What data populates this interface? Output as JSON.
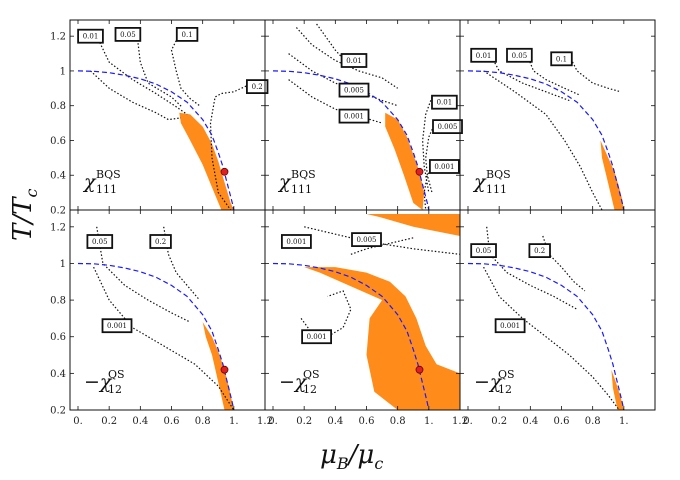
{
  "chart_data": {
    "type": "line",
    "xlabel": "μB/μc",
    "ylabel": "T/Tc",
    "xlim": [
      0,
      1.2
    ],
    "ylim": [
      0.2,
      1.27
    ],
    "x_ticks": [
      "0.",
      "0.2",
      "0.4",
      "0.6",
      "0.8",
      "1.",
      "1.2"
    ],
    "x_ticks_last": [
      "0.",
      "0.2",
      "0.4",
      "0.6",
      "0.8",
      "1."
    ],
    "y_ticks": [
      "0.2",
      "0.4",
      "0.6",
      "0.8",
      "1",
      "1.2"
    ],
    "crossover_line": {
      "description": "phase boundary (dashed)",
      "color": "#1a1aff",
      "x": [
        0.0,
        0.1,
        0.2,
        0.3,
        0.4,
        0.5,
        0.6,
        0.7,
        0.8,
        0.86,
        0.9,
        0.93,
        0.95,
        0.97,
        0.99,
        1.0
      ],
      "y": [
        1.0,
        0.998,
        0.99,
        0.975,
        0.955,
        0.925,
        0.88,
        0.82,
        0.72,
        0.63,
        0.53,
        0.45,
        0.38,
        0.31,
        0.24,
        0.2
      ]
    },
    "critical_point": {
      "x": 0.94,
      "y": 0.42,
      "color": "#e02020"
    },
    "fill_color": "#ff8c1a",
    "panels": [
      {
        "id": "p1",
        "observable": {
          "prefix": "",
          "sup": "BQS",
          "sub": "111"
        },
        "contours": [
          {
            "label": "0.01",
            "label_pos": [
              0.08,
              1.2
            ],
            "x": [
              0.12,
              0.2,
              0.35,
              0.5,
              0.62,
              0.7
            ],
            "y": [
              1.2,
              1.05,
              0.95,
              0.87,
              0.8,
              0.75
            ]
          },
          {
            "label": "0.05",
            "label_pos": [
              0.32,
              1.21
            ],
            "x": [
              0.38,
              0.4,
              0.45,
              0.6,
              0.67
            ],
            "y": [
              1.2,
              1.05,
              0.93,
              0.85,
              0.79
            ]
          },
          {
            "label": "0.1",
            "label_pos": [
              0.7,
              1.21
            ],
            "x": [
              0.65,
              0.6,
              0.63,
              0.66,
              0.72,
              0.78
            ],
            "y": [
              1.21,
              1.12,
              1.0,
              0.9,
              0.84,
              0.8
            ]
          },
          {
            "label": "0.2",
            "label_pos": [
              1.15,
              0.91
            ],
            "x": [
              1.12,
              1.0,
              0.92,
              0.88,
              0.85,
              0.86,
              0.9,
              0.98
            ],
            "y": [
              0.93,
              0.88,
              0.87,
              0.85,
              0.7,
              0.5,
              0.3,
              0.2
            ]
          },
          {
            "label": "",
            "label_pos": [
              0,
              0
            ],
            "x": [
              0.08,
              0.2,
              0.35,
              0.5,
              0.58,
              0.66
            ],
            "y": [
              1.0,
              0.9,
              0.82,
              0.76,
              0.72,
              0.73
            ]
          }
        ],
        "fill": {
          "x": [
            0.65,
            0.72,
            0.8,
            0.86,
            0.9,
            0.94,
            0.98,
            1.0,
            0.92,
            0.86,
            0.8,
            0.72,
            0.66
          ],
          "y": [
            0.76,
            0.75,
            0.68,
            0.58,
            0.48,
            0.36,
            0.24,
            0.2,
            0.2,
            0.33,
            0.46,
            0.6,
            0.7
          ]
        },
        "show_critical_point": true
      },
      {
        "id": "p2",
        "observable": {
          "prefix": "",
          "sup": "BQS",
          "sub": "111"
        },
        "contours": [
          {
            "label": "0.01",
            "label_pos": [
              0.52,
              1.06
            ],
            "x": [
              0.15,
              0.25,
              0.4,
              0.55,
              0.7,
              0.8
            ],
            "y": [
              1.25,
              1.15,
              1.06,
              1.0,
              0.96,
              0.9
            ]
          },
          {
            "label": "0.005",
            "label_pos": [
              0.52,
              0.89
            ],
            "x": [
              0.1,
              0.25,
              0.4,
              0.55,
              0.7,
              0.8
            ],
            "y": [
              1.1,
              1.0,
              0.93,
              0.88,
              0.83,
              0.8
            ]
          },
          {
            "label": "0.001",
            "label_pos": [
              0.52,
              0.74
            ],
            "x": [
              0.1,
              0.25,
              0.4,
              0.55,
              0.7
            ],
            "y": [
              0.95,
              0.85,
              0.78,
              0.74,
              0.7
            ]
          },
          {
            "label": "0.01",
            "label_pos": [
              1.1,
              0.82
            ],
            "x": [
              1.02,
              0.98,
              0.96,
              0.97,
              1.0
            ],
            "y": [
              0.85,
              0.75,
              0.6,
              0.45,
              0.3
            ]
          },
          {
            "label": "0.005",
            "label_pos": [
              1.12,
              0.68
            ],
            "x": [
              1.05,
              1.0,
              0.98,
              0.99,
              1.02
            ],
            "y": [
              0.72,
              0.62,
              0.5,
              0.4,
              0.3
            ]
          },
          {
            "label": "0.001",
            "label_pos": [
              1.1,
              0.45
            ],
            "x": [
              1.02,
              0.99,
              0.97,
              0.98
            ],
            "y": [
              0.45,
              0.4,
              0.3,
              0.2
            ]
          },
          {
            "label": "",
            "label_pos": [
              0,
              0
            ],
            "x": [
              0.28,
              0.32,
              0.36,
              0.4,
              0.44
            ],
            "y": [
              1.27,
              1.22,
              1.17,
              1.12,
              1.08
            ]
          }
        ],
        "fill": {
          "x": [
            0.72,
            0.8,
            0.86,
            0.9,
            0.94,
            0.97,
            0.96,
            0.9,
            0.84,
            0.78,
            0.72
          ],
          "y": [
            0.76,
            0.72,
            0.62,
            0.52,
            0.42,
            0.3,
            0.2,
            0.24,
            0.4,
            0.55,
            0.68
          ]
        },
        "show_critical_point": true
      },
      {
        "id": "p3",
        "observable": {
          "prefix": "",
          "sup": "BQS",
          "sub": "111"
        },
        "contours": [
          {
            "label": "0.01",
            "label_pos": [
              0.1,
              1.09
            ],
            "x": [
              0.14,
              0.2,
              0.35,
              0.5,
              0.65
            ],
            "y": [
              1.1,
              1.0,
              0.93,
              0.88,
              0.83
            ]
          },
          {
            "label": "0.05",
            "label_pos": [
              0.33,
              1.09
            ],
            "x": [
              0.38,
              0.42,
              0.5,
              0.62,
              0.72
            ],
            "y": [
              1.09,
              1.0,
              0.95,
              0.9,
              0.86
            ]
          },
          {
            "label": "0.1",
            "label_pos": [
              0.6,
              1.07
            ],
            "x": [
              0.66,
              0.7,
              0.8,
              0.9,
              0.98
            ],
            "y": [
              1.07,
              1.0,
              0.93,
              0.9,
              0.88
            ]
          },
          {
            "label": "",
            "label_pos": [
              0,
              0
            ],
            "x": [
              0.1,
              0.3,
              0.5,
              0.62,
              0.72,
              0.8,
              0.86
            ],
            "y": [
              1.0,
              0.88,
              0.75,
              0.6,
              0.45,
              0.3,
              0.2
            ]
          }
        ],
        "fill": {
          "x": [
            0.85,
            0.9,
            0.94,
            0.97,
            0.99,
            1.0,
            0.94,
            0.9,
            0.86
          ],
          "y": [
            0.6,
            0.5,
            0.42,
            0.33,
            0.26,
            0.2,
            0.2,
            0.35,
            0.5
          ]
        },
        "show_critical_point": false
      },
      {
        "id": "p4",
        "observable": {
          "prefix": "−",
          "sup": "QS",
          "sub": "12"
        },
        "contours": [
          {
            "label": "0.05",
            "label_pos": [
              0.14,
              1.12
            ],
            "x": [
              0.12,
              0.16,
              0.3,
              0.45,
              0.6,
              0.72
            ],
            "y": [
              1.2,
              1.0,
              0.88,
              0.8,
              0.73,
              0.68
            ]
          },
          {
            "label": "0.2",
            "label_pos": [
              0.53,
              1.12
            ],
            "x": [
              0.55,
              0.58,
              0.63,
              0.7,
              0.78
            ],
            "y": [
              1.2,
              1.05,
              0.95,
              0.88,
              0.8
            ]
          },
          {
            "label": "0.001",
            "label_pos": [
              0.25,
              0.66
            ],
            "x": [
              0.1,
              0.2,
              0.35,
              0.55,
              0.75,
              0.9,
              1.0
            ],
            "y": [
              0.98,
              0.8,
              0.65,
              0.55,
              0.45,
              0.33,
              0.2
            ]
          }
        ],
        "fill": {
          "x": [
            0.8,
            0.86,
            0.9,
            0.94,
            0.97,
            1.0,
            0.94,
            0.9,
            0.86,
            0.82
          ],
          "y": [
            0.68,
            0.6,
            0.52,
            0.42,
            0.32,
            0.2,
            0.2,
            0.35,
            0.5,
            0.6
          ]
        },
        "show_critical_point": true
      },
      {
        "id": "p5",
        "observable": {
          "prefix": "−",
          "sup": "QS",
          "sub": "12"
        },
        "contours": [
          {
            "label": "0.001",
            "label_pos": [
              0.15,
              1.12
            ],
            "x": [
              0.2,
              0.3,
              0.45,
              0.6,
              0.75,
              0.9,
              1.1,
              1.2
            ],
            "y": [
              1.2,
              1.18,
              1.15,
              1.12,
              1.1,
              1.08,
              1.06,
              1.05
            ]
          },
          {
            "label": "0.005",
            "label_pos": [
              0.6,
              1.13
            ],
            "x": [
              0.5,
              0.6,
              0.7,
              0.8,
              0.9
            ],
            "y": [
              1.05,
              1.08,
              1.1,
              1.12,
              1.14
            ]
          },
          {
            "label": "0.001",
            "label_pos": [
              0.28,
              0.6
            ],
            "x": [
              0.18,
              0.25,
              0.35,
              0.45,
              0.5,
              0.45,
              0.35
            ],
            "y": [
              0.7,
              0.62,
              0.6,
              0.65,
              0.75,
              0.85,
              0.82
            ]
          }
        ],
        "fill": {
          "x": [
            0.25,
            0.4,
            0.6,
            0.75,
            0.85,
            0.92,
            0.98,
            1.05,
            1.2,
            1.2,
            1.0,
            0.8,
            0.65,
            0.6,
            0.62,
            0.7,
            0.3,
            0.2
          ],
          "y": [
            0.98,
            0.98,
            0.95,
            0.9,
            0.82,
            0.7,
            0.55,
            0.45,
            0.4,
            0.2,
            0.2,
            0.2,
            0.3,
            0.5,
            0.7,
            0.8,
            0.95,
            0.98
          ]
        },
        "fill_top": {
          "x": [
            0.6,
            0.8,
            1.0,
            1.2,
            1.2,
            0.9,
            0.7
          ],
          "y": [
            1.27,
            1.27,
            1.27,
            1.27,
            1.15,
            1.2,
            1.25
          ]
        },
        "show_critical_point": true
      },
      {
        "id": "p6",
        "observable": {
          "prefix": "−",
          "sup": "QS",
          "sub": "12"
        },
        "contours": [
          {
            "label": "0.05",
            "label_pos": [
              0.1,
              1.07
            ],
            "x": [
              0.12,
              0.14,
              0.25,
              0.4,
              0.55,
              0.7
            ],
            "y": [
              1.2,
              1.05,
              0.95,
              0.88,
              0.82,
              0.75
            ]
          },
          {
            "label": "0.2",
            "label_pos": [
              0.46,
              1.07
            ],
            "x": [
              0.48,
              0.52,
              0.6,
              0.68,
              0.75
            ],
            "y": [
              1.15,
              1.05,
              0.98,
              0.9,
              0.85
            ]
          },
          {
            "label": "0.001",
            "label_pos": [
              0.27,
              0.66
            ],
            "x": [
              0.1,
              0.2,
              0.35,
              0.5,
              0.65,
              0.8,
              0.9,
              0.97
            ],
            "y": [
              0.98,
              0.82,
              0.7,
              0.6,
              0.5,
              0.38,
              0.28,
              0.2
            ]
          }
        ],
        "fill": {
          "x": [
            0.92,
            0.95,
            0.98,
            1.0,
            0.96,
            0.93
          ],
          "y": [
            0.42,
            0.35,
            0.27,
            0.2,
            0.2,
            0.32
          ]
        },
        "show_critical_point": false
      }
    ]
  }
}
